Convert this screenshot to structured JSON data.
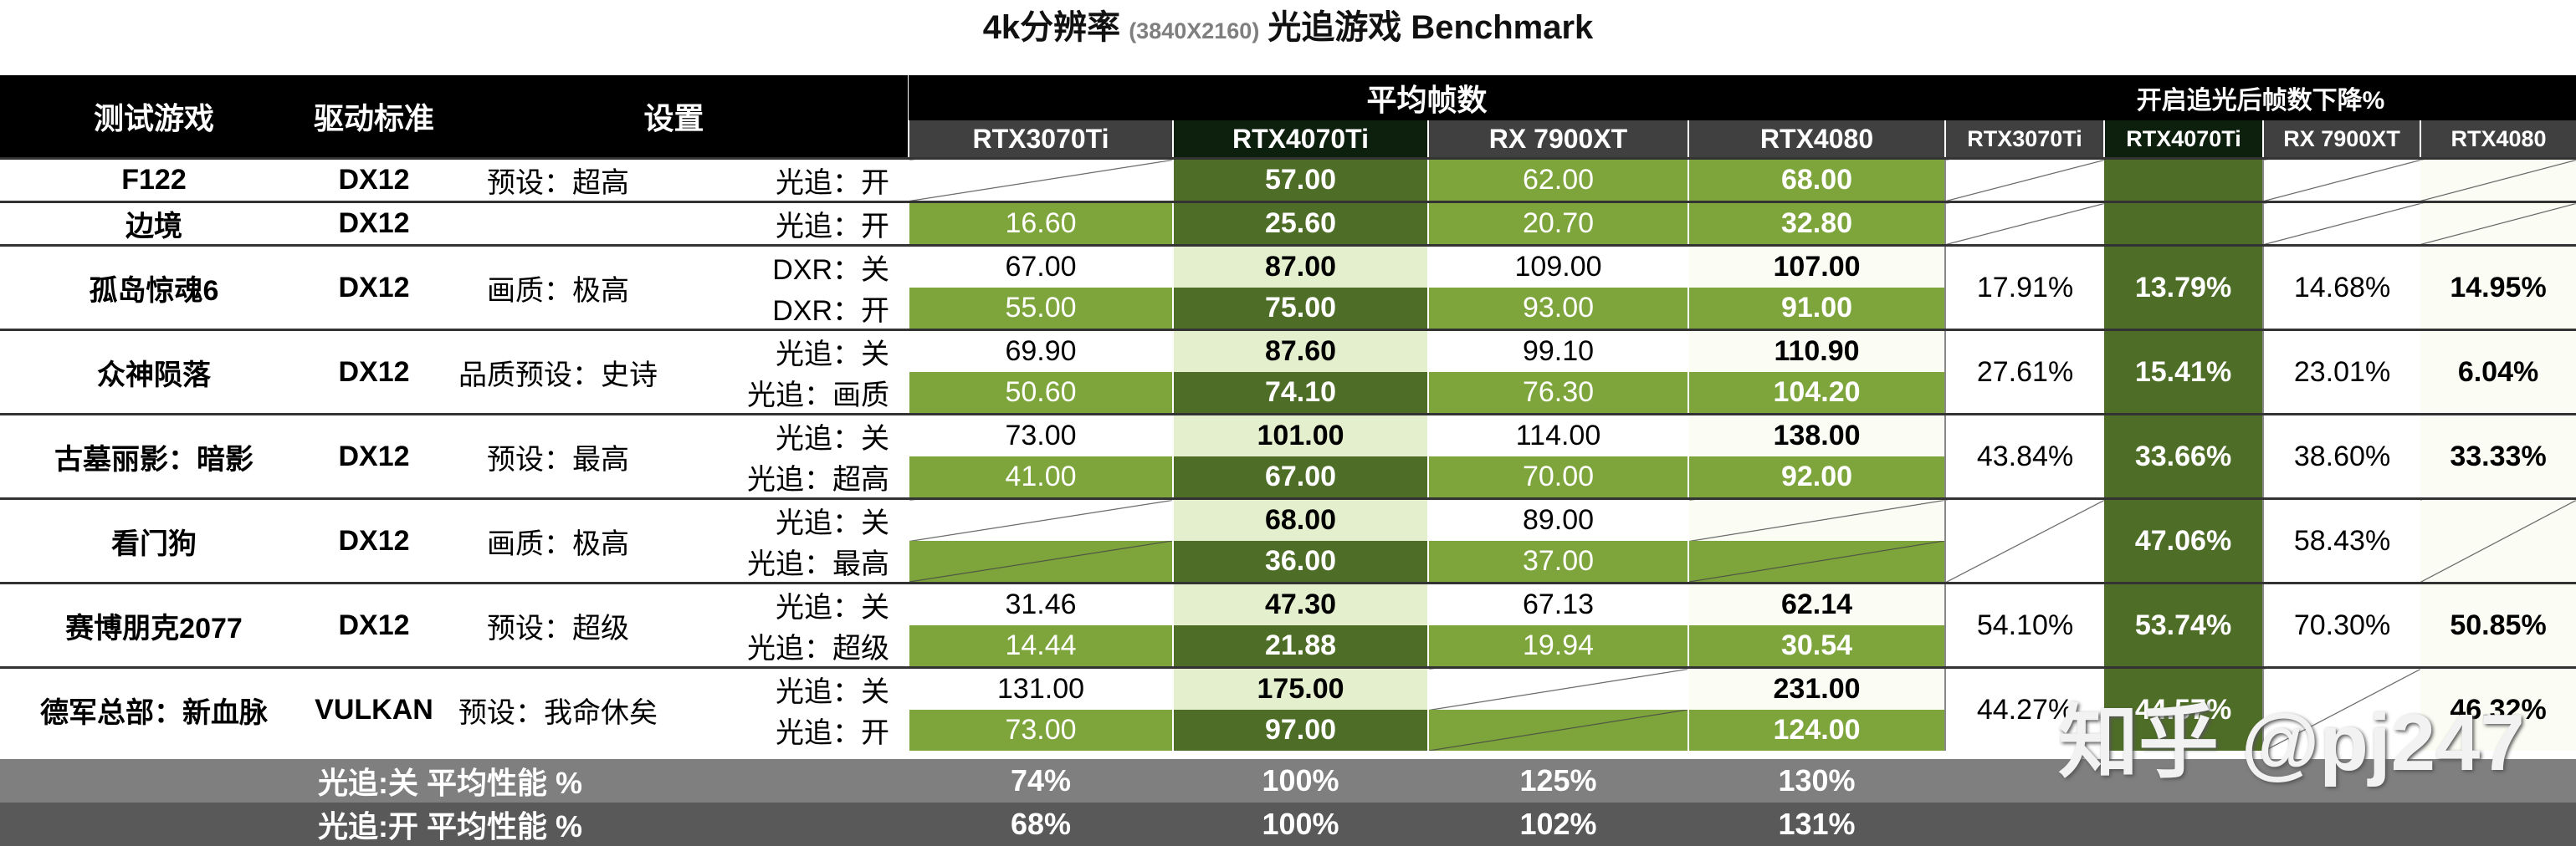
{
  "title": {
    "main": "4k分辨率",
    "res": "(3840X2160)",
    "tail": "光追游戏 Benchmark"
  },
  "headers": {
    "game": "测试游戏",
    "api": "驱动标准",
    "settings": "设置",
    "avg_fps": "平均帧数",
    "drop": "开启追光后帧数下降%",
    "gpus": [
      "RTX3070Ti",
      "RTX4070Ti",
      "RX 7900XT",
      "RTX4080"
    ]
  },
  "rows": [
    {
      "game": "F122",
      "api": "DX12",
      "preset": "预设：超高",
      "lines": [
        {
          "mode": "光追：开",
          "v": [
            "",
            "57.00",
            "62.00",
            "68.00"
          ]
        }
      ],
      "pct": [
        "",
        "",
        "",
        ""
      ]
    },
    {
      "game": "边境",
      "api": "DX12",
      "preset": "",
      "lines": [
        {
          "mode": "光追：开",
          "v": [
            "16.60",
            "25.60",
            "20.70",
            "32.80"
          ]
        }
      ],
      "pct": [
        "",
        "",
        "",
        ""
      ]
    },
    {
      "game": "孤岛惊魂6",
      "api": "DX12",
      "preset": "画质：极高",
      "lines": [
        {
          "mode": "DXR：关",
          "v": [
            "67.00",
            "87.00",
            "109.00",
            "107.00"
          ]
        },
        {
          "mode": "DXR：开",
          "v": [
            "55.00",
            "75.00",
            "93.00",
            "91.00"
          ]
        }
      ],
      "pct": [
        "17.91%",
        "13.79%",
        "14.68%",
        "14.95%"
      ]
    },
    {
      "game": "众神陨落",
      "api": "DX12",
      "preset": "品质预设：史诗",
      "lines": [
        {
          "mode": "光追：关",
          "v": [
            "69.90",
            "87.60",
            "99.10",
            "110.90"
          ]
        },
        {
          "mode": "光追：画质",
          "v": [
            "50.60",
            "74.10",
            "76.30",
            "104.20"
          ]
        }
      ],
      "pct": [
        "27.61%",
        "15.41%",
        "23.01%",
        "6.04%"
      ]
    },
    {
      "game": "古墓丽影：暗影",
      "api": "DX12",
      "preset": "预设：最高",
      "lines": [
        {
          "mode": "光追：关",
          "v": [
            "73.00",
            "101.00",
            "114.00",
            "138.00"
          ]
        },
        {
          "mode": "光追：超高",
          "v": [
            "41.00",
            "67.00",
            "70.00",
            "92.00"
          ]
        }
      ],
      "pct": [
        "43.84%",
        "33.66%",
        "38.60%",
        "33.33%"
      ]
    },
    {
      "game": "看门狗",
      "api": "DX12",
      "preset": "画质：极高",
      "lines": [
        {
          "mode": "光追：关",
          "v": [
            "",
            "68.00",
            "89.00",
            ""
          ]
        },
        {
          "mode": "光追：最高",
          "v": [
            "",
            "36.00",
            "37.00",
            ""
          ]
        }
      ],
      "pct": [
        "",
        "47.06%",
        "58.43%",
        ""
      ]
    },
    {
      "game": "赛博朋克2077",
      "api": "DX12",
      "preset": "预设：超级",
      "lines": [
        {
          "mode": "光追：关",
          "v": [
            "31.46",
            "47.30",
            "67.13",
            "62.14"
          ]
        },
        {
          "mode": "光追：超级",
          "v": [
            "14.44",
            "21.88",
            "19.94",
            "30.54"
          ]
        }
      ],
      "pct": [
        "54.10%",
        "53.74%",
        "70.30%",
        "50.85%"
      ]
    },
    {
      "game": "德军总部：新血脉",
      "api": "VULKAN",
      "preset": "预设：我命休矣",
      "lines": [
        {
          "mode": "光追：关",
          "v": [
            "131.00",
            "175.00",
            "",
            "231.00"
          ]
        },
        {
          "mode": "光追：开",
          "v": [
            "73.00",
            "97.00",
            "",
            "124.00"
          ]
        }
      ],
      "pct": [
        "44.27%",
        "44.57%",
        "",
        "46.32%"
      ]
    }
  ],
  "summary": [
    {
      "label": "光追:关 平均性能 %",
      "v": [
        "74%",
        "100%",
        "125%",
        "130%"
      ]
    },
    {
      "label": "光追:开 平均性能 %",
      "v": [
        "68%",
        "100%",
        "102%",
        "131%"
      ]
    }
  ],
  "watermark": "知乎 @pj247",
  "colors": {
    "header": "#000000",
    "green_mid": "#7ea53c",
    "green_dark": "#4e6d26",
    "green_light": "#e4efcd"
  }
}
